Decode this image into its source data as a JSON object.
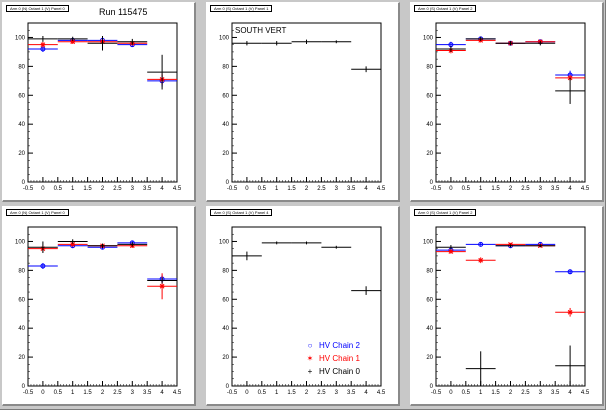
{
  "canvas_title": "Run 115475",
  "colors": {
    "chain2": "#0000ff",
    "chain1": "#ff0000",
    "chain0": "#000000"
  },
  "legend": [
    {
      "label": "HV Chain 2",
      "marker": "○",
      "color": "#0000ff"
    },
    {
      "label": "HV Chain 1",
      "marker": "✶",
      "color": "#ff0000"
    },
    {
      "label": "HV Chain 0",
      "marker": "+",
      "color": "#000000"
    }
  ],
  "chart_data": [
    {
      "type": "scatter",
      "title": "Arm 0 (N) Octant 1 (V) Panel 0",
      "xlim": [
        -0.5,
        4.5
      ],
      "ylim": [
        0,
        110
      ],
      "xticks": [
        "-0.5",
        "0",
        "0.5",
        "1",
        "1.5",
        "2",
        "2.5",
        "3",
        "3.5",
        "4",
        "4.5"
      ],
      "yticks": [
        "0",
        "20",
        "40",
        "60",
        "80",
        "100"
      ],
      "series": [
        {
          "name": "HV Chain 2",
          "points": [
            [
              0,
              92,
              2
            ],
            [
              1,
              98,
              1.5
            ],
            [
              2,
              98,
              1.5
            ],
            [
              3,
              95,
              1.5
            ],
            [
              4,
              70,
              4
            ]
          ]
        },
        {
          "name": "HV Chain 1",
          "points": [
            [
              0,
              95,
              2
            ],
            [
              1,
              97,
              1.5
            ],
            [
              2,
              97,
              1.5
            ],
            [
              3,
              96,
              1.5
            ],
            [
              4,
              71,
              4
            ]
          ]
        },
        {
          "name": "HV Chain 0",
          "points": [
            [
              0,
              99,
              2
            ],
            [
              1,
              99,
              1.5
            ],
            [
              2,
              96,
              5
            ],
            [
              3,
              97,
              2
            ],
            [
              4,
              76,
              12
            ]
          ]
        }
      ]
    },
    {
      "type": "scatter",
      "title": "Arm 0 (S) Octant 1 (V) Panel 1",
      "label": "SOUTH VERT",
      "xlim": [
        -0.5,
        4.5
      ],
      "ylim": [
        0,
        110
      ],
      "xticks": [
        "-0.5",
        "0",
        "0.5",
        "1",
        "1.5",
        "2",
        "2.5",
        "3",
        "3.5",
        "4",
        "4.5"
      ],
      "yticks": [
        "0",
        "20",
        "40",
        "60",
        "80",
        "100"
      ],
      "series": [
        {
          "name": "HV Chain 0",
          "points": [
            [
              0,
              96,
              1.5
            ],
            [
              1,
              96,
              1.5
            ],
            [
              2,
              97,
              1.5
            ],
            [
              3,
              97,
              1
            ],
            [
              4,
              78,
              2
            ]
          ]
        }
      ]
    },
    {
      "type": "scatter",
      "title": "Arm 0 (S) Octant 1 (V) Panel 2",
      "xlim": [
        -0.5,
        4.5
      ],
      "ylim": [
        0,
        110
      ],
      "xticks": [
        "-0.5",
        "0",
        "0.5",
        "1",
        "1.5",
        "2",
        "2.5",
        "3",
        "3.5",
        "4",
        "4.5"
      ],
      "yticks": [
        "0",
        "20",
        "40",
        "60",
        "80",
        "100"
      ],
      "series": [
        {
          "name": "HV Chain 2",
          "points": [
            [
              0,
              95,
              2
            ],
            [
              1,
              99,
              1.5
            ],
            [
              2,
              96,
              1.5
            ],
            [
              3,
              97,
              1.5
            ],
            [
              4,
              74,
              3
            ]
          ]
        },
        {
          "name": "HV Chain 1",
          "points": [
            [
              0,
              91,
              2
            ],
            [
              1,
              98,
              1.5
            ],
            [
              2,
              96,
              1.5
            ],
            [
              3,
              97,
              1.5
            ],
            [
              4,
              72,
              2
            ]
          ]
        },
        {
          "name": "HV Chain 0",
          "points": [
            [
              0,
              92,
              2
            ],
            [
              1,
              99,
              1.5
            ],
            [
              2,
              96,
              1.5
            ],
            [
              3,
              96,
              1.5
            ],
            [
              4,
              63,
              9
            ]
          ]
        }
      ]
    },
    {
      "type": "scatter",
      "title": "Arm 0 (N) Octant 1 (V) Panel 0",
      "xlim": [
        -0.5,
        4.5
      ],
      "ylim": [
        0,
        110
      ],
      "xticks": [
        "-0.5",
        "0",
        "0.5",
        "1",
        "1.5",
        "2",
        "2.5",
        "3",
        "3.5",
        "4",
        "4.5"
      ],
      "yticks": [
        "0",
        "20",
        "40",
        "60",
        "80",
        "100"
      ],
      "series": [
        {
          "name": "HV Chain 2",
          "points": [
            [
              0,
              83,
              2
            ],
            [
              1,
              97,
              1.5
            ],
            [
              2,
              96,
              1.5
            ],
            [
              3,
              99,
              1.5
            ],
            [
              4,
              74,
              3
            ]
          ]
        },
        {
          "name": "HV Chain 1",
          "points": [
            [
              0,
              95,
              2
            ],
            [
              1,
              98,
              1.5
            ],
            [
              2,
              97,
              1.5
            ],
            [
              3,
              97,
              1.5
            ],
            [
              4,
              69,
              9
            ]
          ]
        },
        {
          "name": "HV Chain 0",
          "points": [
            [
              0,
              96,
              4
            ],
            [
              1,
              100,
              1.5
            ],
            [
              2,
              97,
              1.5
            ],
            [
              3,
              98,
              1.5
            ],
            [
              4,
              73,
              2
            ]
          ]
        }
      ]
    },
    {
      "type": "scatter",
      "title": "Arm 0 (S) Octant 1 (V) Panel 4",
      "xlim": [
        -0.5,
        4.5
      ],
      "ylim": [
        0,
        110
      ],
      "xticks": [
        "-0.5",
        "0",
        "0.5",
        "1",
        "1.5",
        "2",
        "2.5",
        "3",
        "3.5",
        "4",
        "4.5"
      ],
      "yticks": [
        "0",
        "20",
        "40",
        "60",
        "80",
        "100"
      ],
      "series": [
        {
          "name": "HV Chain 0",
          "points": [
            [
              0,
              90,
              3
            ],
            [
              1,
              99,
              1
            ],
            [
              2,
              99,
              1
            ],
            [
              3,
              96,
              1
            ],
            [
              4,
              66,
              3
            ]
          ]
        }
      ]
    },
    {
      "type": "scatter",
      "title": "Arm 0 (S) Octant 1 (V) Panel 2",
      "xlim": [
        -0.5,
        4.5
      ],
      "ylim": [
        0,
        110
      ],
      "xticks": [
        "-0.5",
        "0",
        "0.5",
        "1",
        "1.5",
        "2",
        "2.5",
        "3",
        "3.5",
        "4",
        "4.5"
      ],
      "yticks": [
        "0",
        "20",
        "40",
        "60",
        "80",
        "100"
      ],
      "series": [
        {
          "name": "HV Chain 2",
          "points": [
            [
              0,
              94,
              1.5
            ],
            [
              1,
              98,
              1
            ],
            [
              2,
              97,
              1
            ],
            [
              3,
              98,
              1
            ],
            [
              4,
              79,
              1.5
            ]
          ]
        },
        {
          "name": "HV Chain 1",
          "points": [
            [
              0,
              93,
              1.5
            ],
            [
              1,
              87,
              2
            ],
            [
              2,
              98,
              1
            ],
            [
              3,
              97,
              1
            ],
            [
              4,
              51,
              3
            ]
          ]
        },
        {
          "name": "HV Chain 0",
          "points": [
            [
              0,
              96,
              1.5
            ],
            [
              1,
              12,
              12
            ],
            [
              2,
              97,
              1
            ],
            [
              3,
              97,
              1
            ],
            [
              4,
              14,
              14
            ]
          ]
        }
      ]
    }
  ]
}
